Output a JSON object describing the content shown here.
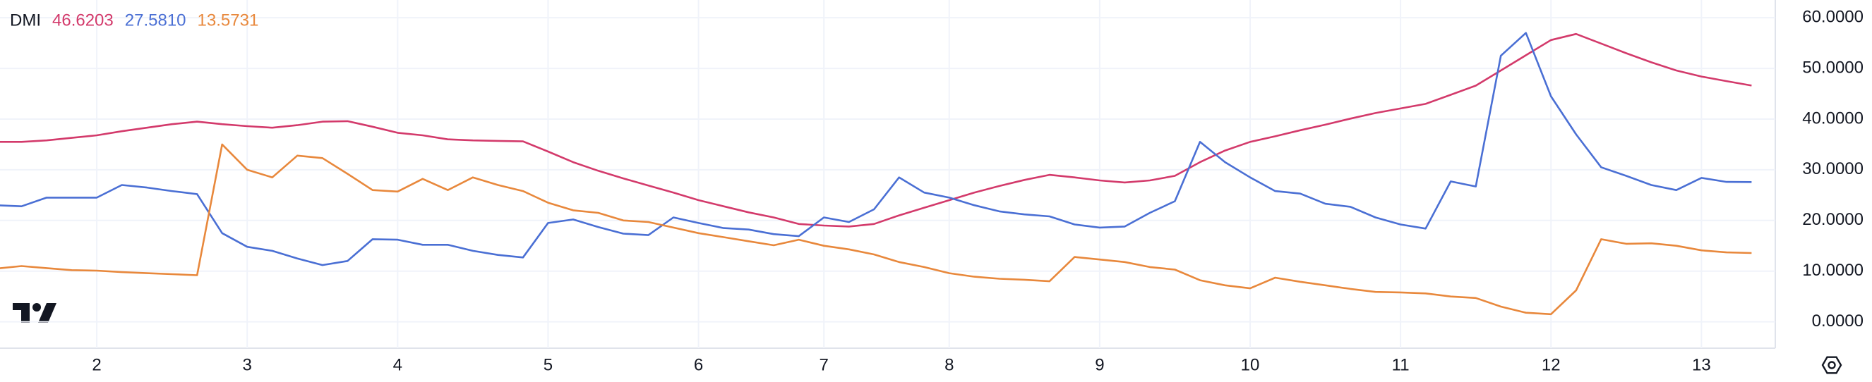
{
  "chart_data": {
    "type": "line",
    "title": "DMI",
    "categories": [
      null,
      null,
      null,
      null,
      "2",
      null,
      null,
      null,
      null,
      null,
      "3",
      null,
      null,
      null,
      null,
      null,
      "4",
      null,
      null,
      null,
      null,
      null,
      "5",
      null,
      null,
      null,
      null,
      null,
      "6",
      null,
      null,
      null,
      null,
      "7",
      null,
      null,
      null,
      null,
      "8",
      null,
      null,
      null,
      null,
      null,
      "9",
      null,
      null,
      null,
      null,
      null,
      "10",
      null,
      null,
      null,
      null,
      null,
      "11",
      null,
      null,
      null,
      null,
      null,
      "12",
      null,
      null,
      null,
      null,
      null,
      "13",
      null,
      null
    ],
    "series": [
      {
        "color": "#d33a6b",
        "last": "46.6203",
        "values": [
          35.5,
          35.5,
          35.8,
          36.3,
          36.8,
          37.6,
          38.3,
          39.0,
          39.5,
          39.0,
          38.6,
          38.3,
          38.8,
          39.5,
          39.6,
          38.5,
          37.3,
          36.8,
          36.0,
          35.8,
          35.7,
          35.6,
          33.6,
          31.5,
          29.8,
          28.3,
          26.9,
          25.5,
          24.0,
          22.8,
          21.6,
          20.6,
          19.3,
          19.0,
          18.8,
          19.3,
          21.0,
          22.5,
          24.0,
          25.5,
          26.8,
          28.0,
          29.0,
          28.5,
          27.9,
          27.5,
          27.9,
          28.8,
          31.5,
          33.8,
          35.5,
          36.6,
          37.8,
          38.9,
          40.1,
          41.2,
          42.1,
          43.0,
          44.8,
          46.6,
          49.6,
          52.6,
          55.6,
          56.8,
          54.9,
          53.0,
          51.2,
          49.6,
          48.4,
          47.5,
          46.6203
        ]
      },
      {
        "color": "#4a6fd4",
        "last": "27.5810",
        "values": [
          23,
          22.8,
          24.5,
          24.5,
          24.5,
          27,
          26.5,
          25.8,
          25.2,
          17.5,
          14.8,
          14,
          12.5,
          11.2,
          12,
          16.3,
          16.2,
          15.2,
          15.2,
          14,
          13.2,
          12.7,
          19.5,
          20.2,
          18.7,
          17.4,
          17.1,
          20.6,
          19.5,
          18.5,
          18.2,
          17.3,
          16.9,
          20.6,
          19.7,
          22.2,
          28.5,
          25.5,
          24.5,
          23,
          21.8,
          21.2,
          20.8,
          19.2,
          18.6,
          18.8,
          21.5,
          23.8,
          35.5,
          31.5,
          28.5,
          25.8,
          25.3,
          23.3,
          22.7,
          20.6,
          19.2,
          18.4,
          27.7,
          26.7,
          52.5,
          57,
          44.5,
          37,
          30.5,
          28.8,
          27,
          26,
          28.4,
          27.6,
          27.581
        ]
      },
      {
        "color": "#e8883c",
        "last": "13.5731",
        "values": [
          10.5,
          11,
          10.6,
          10.2,
          10.1,
          9.8,
          9.6,
          9.4,
          9.2,
          35,
          30,
          28.5,
          32.8,
          32.3,
          29.2,
          26,
          25.7,
          28.2,
          26,
          28.5,
          27,
          25.8,
          23.5,
          22,
          21.5,
          20,
          19.7,
          18.6,
          17.5,
          16.7,
          15.9,
          15.1,
          16.2,
          15.0,
          14.3,
          13.3,
          11.8,
          10.8,
          9.6,
          8.9,
          8.5,
          8.3,
          8.0,
          12.8,
          12.3,
          11.8,
          10.8,
          10.3,
          8.2,
          7.2,
          6.6,
          8.7,
          7.9,
          7.2,
          6.5,
          5.9,
          5.8,
          5.6,
          5.0,
          4.7,
          3.0,
          1.8,
          1.5,
          6.2,
          16.3,
          15.4,
          15.5,
          15.0,
          14.1,
          13.7,
          13.5731
        ]
      }
    ],
    "ylim": [
      -5.2,
      63.5
    ],
    "yticks": [
      {
        "value": 0,
        "label": "0.0000"
      },
      {
        "value": 10,
        "label": "10.0000"
      },
      {
        "value": 20,
        "label": "20.0000"
      },
      {
        "value": 30,
        "label": "30.0000"
      },
      {
        "value": 40,
        "label": "40.0000"
      },
      {
        "value": 50,
        "label": "50.0000"
      },
      {
        "value": 60,
        "label": "60.0000"
      }
    ],
    "grid": true
  }
}
